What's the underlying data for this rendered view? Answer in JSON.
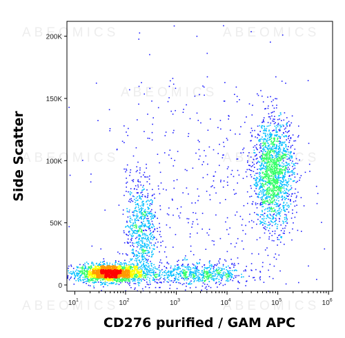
{
  "chart_data": {
    "type": "scatter",
    "style": "density dot plot",
    "xlabel": "CD276 purified / GAM APC",
    "ylabel": "Side Scatter",
    "x_scale": "log",
    "xlim": [
      7,
      1200000
    ],
    "ylim": [
      -5000,
      212000
    ],
    "x_ticks": [
      {
        "value": 10,
        "base": "10",
        "exp": "1"
      },
      {
        "value": 100,
        "base": "10",
        "exp": "2"
      },
      {
        "value": 1000,
        "base": "10",
        "exp": "3"
      },
      {
        "value": 10000,
        "base": "10",
        "exp": "4"
      },
      {
        "value": 100000,
        "base": "10",
        "exp": "5"
      },
      {
        "value": 1000000,
        "base": "10",
        "exp": "6"
      }
    ],
    "y_ticks": [
      {
        "value": 0,
        "label": "0"
      },
      {
        "value": 50000,
        "label": "50K"
      },
      {
        "value": 100000,
        "label": "100K"
      },
      {
        "value": 150000,
        "label": "150K"
      },
      {
        "value": 200000,
        "label": "200K"
      }
    ],
    "populations": [
      {
        "center_x": 50,
        "center_y": 10000,
        "spread_log_x": 0.32,
        "spread_y": 3500,
        "weight": 0.38
      },
      {
        "center_x": 200,
        "center_y": 45000,
        "spread_log_x": 0.15,
        "spread_y": 22000,
        "weight": 0.12
      },
      {
        "center_x": 2500,
        "center_y": 9000,
        "spread_log_x": 0.55,
        "spread_y": 4500,
        "weight": 0.12
      },
      {
        "center_x": 80000,
        "center_y": 90000,
        "spread_log_x": 0.2,
        "spread_y": 22000,
        "weight": 0.3
      },
      {
        "center_x": 3000,
        "center_y": 80000,
        "spread_log_x": 1.1,
        "spread_y": 50000,
        "weight": 0.08
      }
    ],
    "density_colors": [
      "#1a1aff",
      "#00bfff",
      "#33ff66",
      "#ffff00",
      "#ff9900",
      "#ff0000"
    ],
    "grid": false,
    "legend": "none"
  },
  "watermark": "ABEOMICS"
}
